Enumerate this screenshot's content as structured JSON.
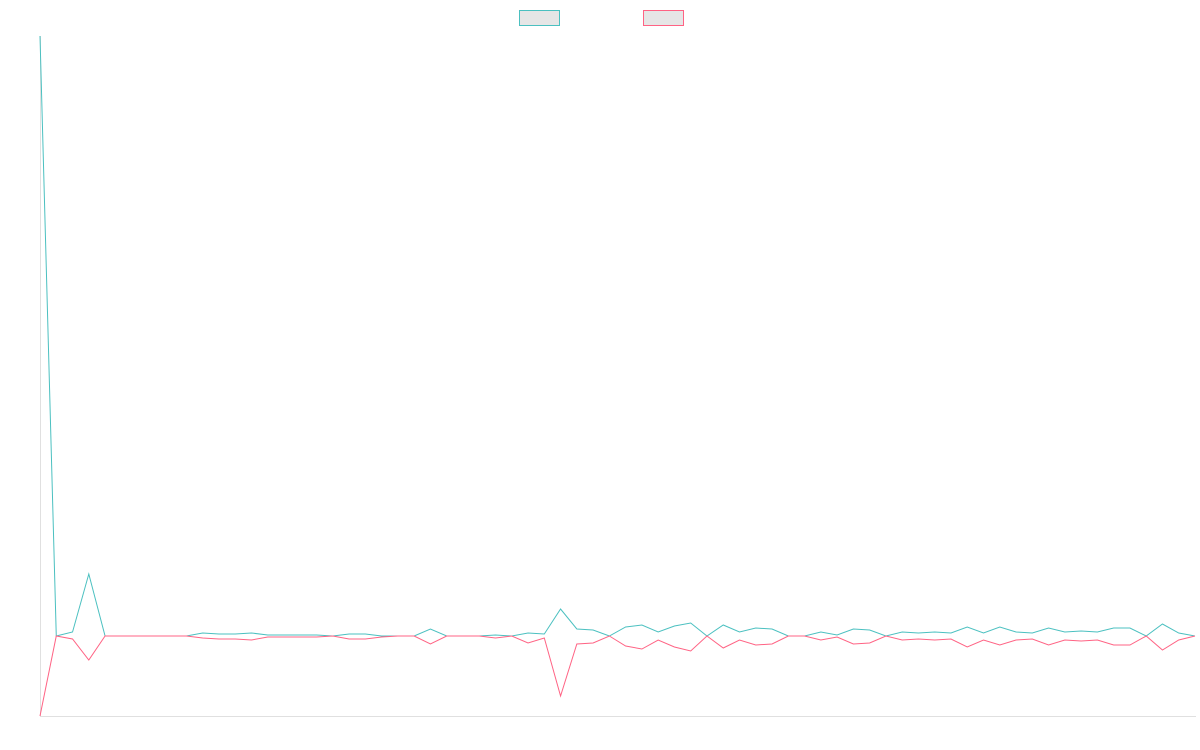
{
  "chart_data": {
    "type": "line",
    "categories": [
      null,
      null,
      null,
      null,
      null,
      null,
      null,
      null,
      null,
      null,
      null,
      null,
      null,
      null,
      null,
      null,
      null,
      null,
      null,
      null,
      null,
      null,
      null,
      null,
      null,
      null,
      null,
      null,
      null,
      null,
      null,
      null,
      null,
      null,
      null,
      null,
      null,
      null,
      null,
      null,
      null,
      null,
      null,
      null,
      null,
      null,
      null,
      null,
      null,
      null,
      null,
      null,
      null,
      null,
      null,
      null,
      null,
      null,
      null,
      null,
      null,
      null,
      null,
      null,
      null,
      null,
      null,
      null,
      null,
      null,
      null,
      null
    ],
    "ylim": [
      -20,
      150
    ],
    "legend": "top",
    "series": [
      {
        "color": "#4bc0c0",
        "values": [
          150,
          0,
          1,
          15.5,
          0,
          0,
          0,
          0,
          0,
          0,
          0.75,
          0.5,
          0.5,
          0.75,
          0.25,
          0.25,
          0.25,
          0.25,
          0,
          0.5,
          0.5,
          0,
          0,
          0,
          1.75,
          0,
          0,
          0,
          0.25,
          0,
          0.75,
          0.5,
          6.75,
          1.75,
          1.5,
          0,
          2.25,
          2.75,
          1,
          2.5,
          3.25,
          0,
          2.75,
          1,
          2,
          1.75,
          0,
          0,
          1,
          0.25,
          1.75,
          1.5,
          0,
          1,
          0.75,
          1,
          0.75,
          2.25,
          0.75,
          2.25,
          1,
          0.75,
          2,
          1,
          1.25,
          1,
          2,
          2,
          0,
          3,
          0.75,
          0
        ]
      },
      {
        "color": "#ff6384",
        "values": [
          -20,
          0,
          -0.75,
          -6,
          0,
          0,
          0,
          0,
          0,
          0,
          -0.5,
          -0.75,
          -0.75,
          -1,
          -0.25,
          -0.25,
          -0.25,
          -0.25,
          0,
          -0.75,
          -0.75,
          -0.25,
          0,
          0,
          -2,
          0,
          0,
          0,
          -0.5,
          0,
          -1.75,
          -0.5,
          -15,
          -2,
          -1.75,
          0,
          -2.5,
          -3.25,
          -1,
          -2.75,
          -3.75,
          0,
          -3,
          -1,
          -2.25,
          -2,
          0,
          0,
          -1,
          -0.25,
          -2,
          -1.75,
          0,
          -1,
          -0.75,
          -1,
          -0.75,
          -2.75,
          -1,
          -2.25,
          -1,
          -0.75,
          -2.25,
          -1,
          -1.25,
          -1,
          -2.25,
          -2.25,
          0,
          -3.5,
          -1,
          0
        ]
      }
    ]
  }
}
